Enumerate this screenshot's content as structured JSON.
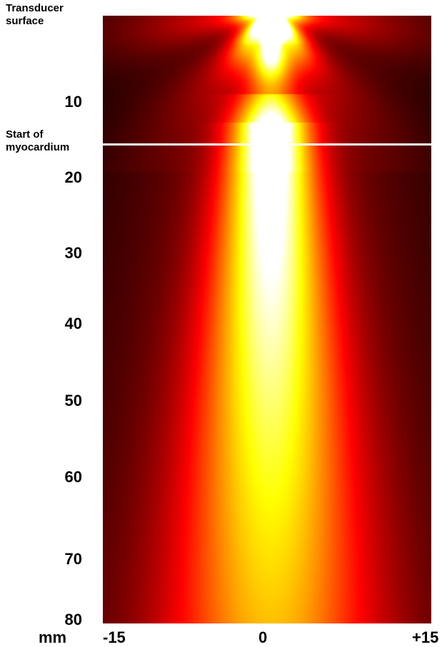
{
  "annotations": {
    "transducer_label": "Transducer surface",
    "myocardium_label": "Start of myocardium"
  },
  "axes": {
    "unit_label": "mm",
    "y_ticks": [
      "10",
      "20",
      "30",
      "40",
      "50",
      "60",
      "70",
      "80"
    ],
    "x_ticks": [
      "-15",
      "0",
      "+15"
    ]
  },
  "colors": {
    "background": "#ffffff",
    "marker_line": "#ffffff",
    "colormap": [
      "#000000",
      "#5a0000",
      "#b40000",
      "#ff2a00",
      "#ff8a00",
      "#ffd400",
      "#ffffb0"
    ]
  }
}
